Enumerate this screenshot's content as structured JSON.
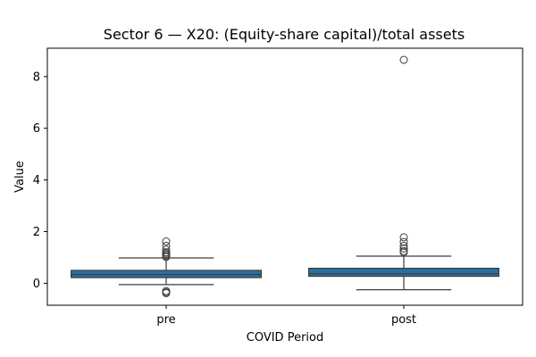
{
  "chart_data": {
    "type": "boxplot",
    "title": "Sector 6 — X20: (Equity-share capital)/total assets",
    "xlabel": "COVID Period",
    "ylabel": "Value",
    "ylim": [
      -0.85,
      9.1
    ],
    "yticks": [
      0,
      2,
      4,
      6,
      8
    ],
    "grid": false,
    "box_color": "#2a6f9f",
    "categories": [
      "pre",
      "post"
    ],
    "boxes": [
      {
        "name": "pre",
        "whisker_low": -0.05,
        "q1": 0.22,
        "median": 0.34,
        "q3": 0.5,
        "whisker_high": 0.98,
        "outliers": [
          1.02,
          1.05,
          1.1,
          1.15,
          1.2,
          1.3,
          1.45,
          1.62,
          -0.3,
          -0.35,
          -0.38
        ]
      },
      {
        "name": "post",
        "whisker_low": -0.25,
        "q1": 0.27,
        "median": 0.37,
        "q3": 0.58,
        "whisker_high": 1.05,
        "outliers": [
          1.2,
          1.25,
          1.35,
          1.45,
          1.6,
          1.78,
          8.65
        ]
      }
    ]
  }
}
